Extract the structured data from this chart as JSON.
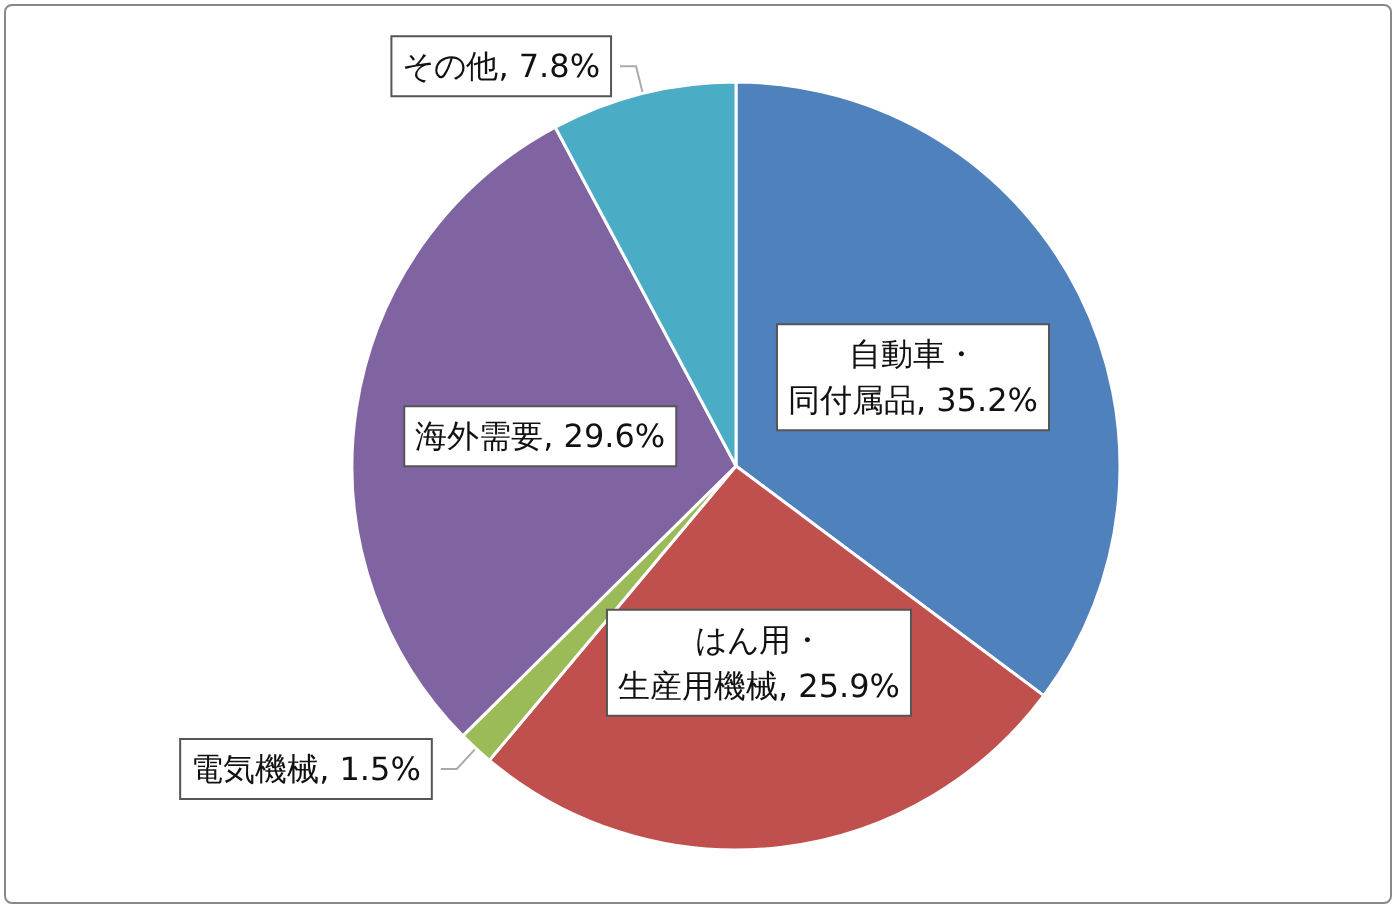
{
  "chart_data": {
    "type": "pie",
    "categories": [
      "自動車・同付属品",
      "はん用・生産用機械",
      "電気機械",
      "海外需要",
      "その他"
    ],
    "values": [
      35.2,
      25.9,
      1.5,
      29.6,
      7.8
    ],
    "value_labels": [
      "35.2%",
      "25.9%",
      "1.5%",
      "29.6%",
      "7.8%"
    ],
    "colors": [
      "#4f81bd",
      "#c0504d",
      "#9bbb59",
      "#8064a2",
      "#4bacc6"
    ],
    "legend": false
  }
}
